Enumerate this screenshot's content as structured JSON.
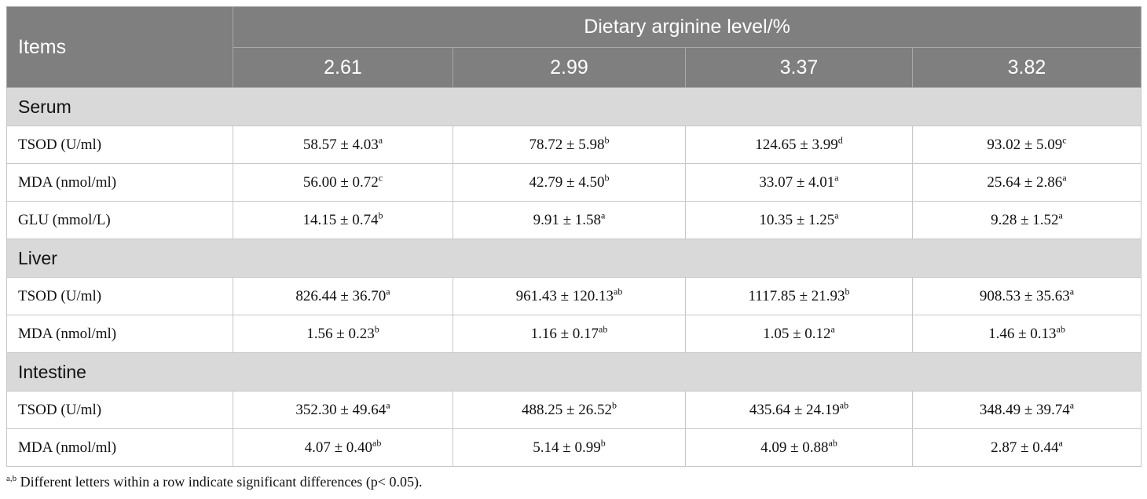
{
  "table": {
    "items_header": "Items",
    "group_header": "Dietary arginine level/%",
    "levels": [
      "2.61",
      "2.99",
      "3.37",
      "3.82"
    ],
    "sections": [
      {
        "name": "Serum",
        "rows": [
          {
            "label": "TSOD (U/ml)",
            "cells": [
              {
                "v": "58.57 ± 4.03",
                "s": "a"
              },
              {
                "v": "78.72 ± 5.98",
                "s": "b"
              },
              {
                "v": "124.65 ± 3.99",
                "s": "d"
              },
              {
                "v": "93.02 ± 5.09",
                "s": "c"
              }
            ]
          },
          {
            "label": "MDA (nmol/ml)",
            "cells": [
              {
                "v": "56.00 ± 0.72",
                "s": "c"
              },
              {
                "v": "42.79 ± 4.50",
                "s": "b"
              },
              {
                "v": "33.07 ± 4.01",
                "s": "a"
              },
              {
                "v": "25.64 ± 2.86",
                "s": "a"
              }
            ]
          },
          {
            "label": "GLU (mmol/L)",
            "cells": [
              {
                "v": "14.15 ± 0.74",
                "s": "b"
              },
              {
                "v": "9.91 ± 1.58",
                "s": "a"
              },
              {
                "v": "10.35 ± 1.25",
                "s": "a"
              },
              {
                "v": "9.28 ± 1.52",
                "s": "a"
              }
            ]
          }
        ]
      },
      {
        "name": "Liver",
        "rows": [
          {
            "label": "TSOD (U/ml)",
            "cells": [
              {
                "v": "826.44 ± 36.70",
                "s": "a"
              },
              {
                "v": "961.43 ± 120.13",
                "s": "ab"
              },
              {
                "v": "1117.85 ± 21.93",
                "s": "b"
              },
              {
                "v": "908.53 ± 35.63",
                "s": "a"
              }
            ]
          },
          {
            "label": "MDA (nmol/ml)",
            "cells": [
              {
                "v": "1.56 ± 0.23",
                "s": "b"
              },
              {
                "v": "1.16 ± 0.17",
                "s": "ab"
              },
              {
                "v": "1.05 ± 0.12",
                "s": "a"
              },
              {
                "v": "1.46 ± 0.13",
                "s": "ab"
              }
            ]
          }
        ]
      },
      {
        "name": "Intestine",
        "rows": [
          {
            "label": "TSOD (U/ml)",
            "cells": [
              {
                "v": "352.30 ± 49.64",
                "s": "a"
              },
              {
                "v": "488.25 ± 26.52",
                "s": "b"
              },
              {
                "v": "435.64 ± 24.19",
                "s": "ab"
              },
              {
                "v": "348.49 ± 39.74",
                "s": "a"
              }
            ]
          },
          {
            "label": "MDA (nmol/ml)",
            "cells": [
              {
                "v": "4.07 ± 0.40",
                "s": "ab"
              },
              {
                "v": "5.14 ± 0.99",
                "s": "b"
              },
              {
                "v": "4.09 ± 0.88",
                "s": "ab"
              },
              {
                "v": "2.87 ± 0.44",
                "s": "a"
              }
            ]
          }
        ]
      }
    ]
  },
  "footnote": {
    "mark": "a,b",
    "text": " Different letters within a row indicate significant differences (p< 0.05)."
  }
}
